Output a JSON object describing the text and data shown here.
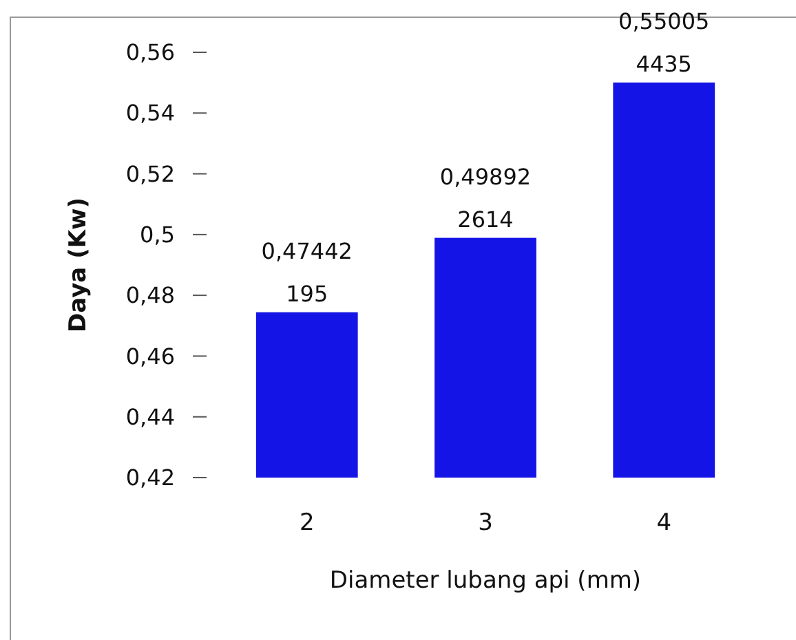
{
  "chart_data": {
    "type": "bar",
    "xlabel": "Diameter lubang api (mm)",
    "ylabel": "Daya (Kw)",
    "categories": [
      "2",
      "3",
      "4"
    ],
    "values": [
      0.47442195,
      0.498922614,
      0.550054435
    ],
    "value_labels": [
      "0,47442195",
      "0,498922614",
      "0,550054435"
    ],
    "color": "#1414e6",
    "ylim": [
      0.42,
      0.56
    ],
    "yticks": [
      {
        "value": 0.42,
        "label": "0,42"
      },
      {
        "value": 0.44,
        "label": "0,44"
      },
      {
        "value": 0.46,
        "label": "0,46"
      },
      {
        "value": 0.48,
        "label": "0,48"
      },
      {
        "value": 0.5,
        "label": "0,5"
      },
      {
        "value": 0.52,
        "label": "0,52"
      },
      {
        "value": 0.54,
        "label": "0,54"
      },
      {
        "value": 0.56,
        "label": "0,56"
      }
    ],
    "grid": false
  }
}
